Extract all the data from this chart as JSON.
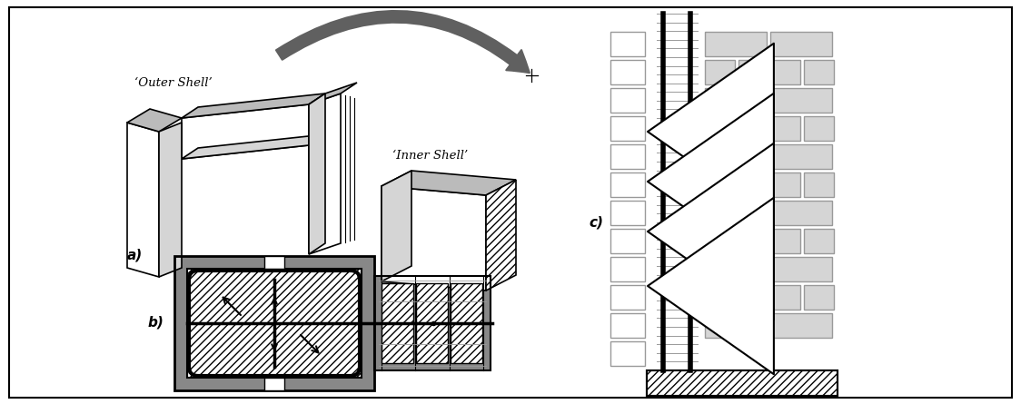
{
  "bg_color": "#ffffff",
  "gray_dark": "#606060",
  "gray_medium": "#999999",
  "gray_light": "#bbbbbb",
  "gray_lighter": "#d5d5d5",
  "gray_fill": "#888888",
  "label_a": "a)",
  "label_b": "b)",
  "label_c": "c)",
  "outer_shell_text": "‘Outer Shell’",
  "inner_shell_text": "‘Inner Shell’",
  "fig_width": 11.24,
  "fig_height": 4.45
}
